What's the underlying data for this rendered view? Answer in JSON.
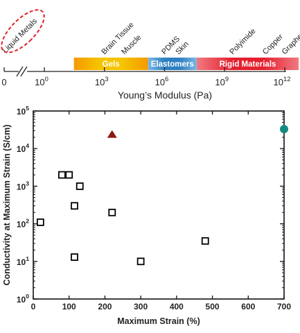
{
  "chart_data": [
    {
      "type": "scale-bar",
      "xlabel": "Young’s Modulus (Pa)",
      "x_scale": "log",
      "xlim": [
        1,
        10000000000000.0
      ],
      "break_labels": [
        "0"
      ],
      "ticks": [
        {
          "value": 1,
          "label": "10",
          "exp": "0"
        },
        {
          "value": 1000,
          "label": "10",
          "exp": "3"
        },
        {
          "value": 1000000,
          "label": "10",
          "exp": "6"
        },
        {
          "value": 1000000000,
          "label": "10",
          "exp": "9"
        },
        {
          "value": 1000000000000,
          "label": "10",
          "exp": "12"
        }
      ],
      "bands": [
        {
          "name": "Gels",
          "range": [
            30,
            150000
          ],
          "color": "#f5c400",
          "fade": "#f59a00"
        },
        {
          "name": "Elastomers",
          "range": [
            150000,
            40000000
          ],
          "color": "#2e7fc2",
          "fade": "#79b8e4"
        },
        {
          "name": "Rigid Materials",
          "range": [
            40000000,
            5000000000000
          ],
          "color": "#e4202e",
          "fade": "#f07a82"
        }
      ],
      "materials": [
        {
          "name": "Liquid Metals",
          "modulus": 0,
          "highlighted": true
        },
        {
          "name": "Brain Tissue",
          "modulus": 1000
        },
        {
          "name": "Muscle",
          "modulus": 10000
        },
        {
          "name": "PDMS",
          "modulus": 1000000
        },
        {
          "name": "Skin",
          "modulus": 5000000
        },
        {
          "name": "Polyimide",
          "modulus": 2500000000
        },
        {
          "name": "Copper",
          "modulus": 110000000000
        },
        {
          "name": "Graphene",
          "modulus": 1000000000000
        }
      ]
    },
    {
      "type": "scatter",
      "xlabel": "Maximum Strain (%)",
      "ylabel": "Conductivity at Maximum Strain (S/cm)",
      "xlim": [
        0,
        700
      ],
      "ylim": [
        1,
        100000
      ],
      "y_scale": "log",
      "xticks": [
        0,
        100,
        200,
        300,
        400,
        500,
        600,
        700
      ],
      "yticks": [
        {
          "value": 1,
          "label": "10",
          "exp": "0"
        },
        {
          "value": 10,
          "label": "10",
          "exp": "1"
        },
        {
          "value": 100,
          "label": "10",
          "exp": "2"
        },
        {
          "value": 1000,
          "label": "10",
          "exp": "3"
        },
        {
          "value": 10000,
          "label": "10",
          "exp": "4"
        },
        {
          "value": 100000,
          "label": "10",
          "exp": "5"
        }
      ],
      "grid": false,
      "series": [
        {
          "marker": "open-square",
          "color": "#000000",
          "points": [
            {
              "x": 20,
              "y": 110
            },
            {
              "x": 80,
              "y": 2000
            },
            {
              "x": 100,
              "y": 2000
            },
            {
              "x": 115,
              "y": 300
            },
            {
              "x": 115,
              "y": 13
            },
            {
              "x": 130,
              "y": 1000
            },
            {
              "x": 220,
              "y": 200
            },
            {
              "x": 300,
              "y": 10
            },
            {
              "x": 480,
              "y": 35
            }
          ]
        },
        {
          "marker": "filled-triangle",
          "color": "#8b1a12",
          "points": [
            {
              "x": 220,
              "y": 24000
            }
          ]
        },
        {
          "marker": "filled-circle",
          "color": "#138a80",
          "points": [
            {
              "x": 700,
              "y": 33000
            }
          ]
        }
      ]
    }
  ]
}
